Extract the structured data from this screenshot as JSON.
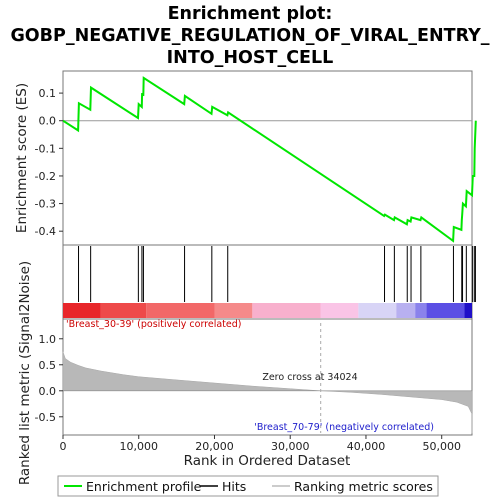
{
  "chart_data": {
    "type": "line",
    "title_lines": [
      "Enrichment plot:",
      "GOBP_NEGATIVE_REGULATION_OF_VIRAL_ENTRY_",
      "INTO_HOST_CELL"
    ],
    "xlabel": "Rank in Ordered Dataset",
    "ylabel_top": "Enrichment score (ES)",
    "ylabel_bottom": "Ranked list metric (Signal2Noise)",
    "xlim": [
      0,
      54000
    ],
    "x_ticks": [
      0,
      10000,
      20000,
      30000,
      40000,
      50000
    ],
    "x_tick_labels": [
      "0",
      "10,000",
      "20,000",
      "30,000",
      "40,000",
      "50,000"
    ],
    "es_ylim": [
      -0.45,
      0.18
    ],
    "es_ticks": [
      0.1,
      0.0,
      -0.1,
      -0.2,
      -0.3,
      -0.4
    ],
    "es_tick_labels": [
      "0.1",
      "0.0",
      "-0.1",
      "-0.2",
      "-0.3",
      "-0.4"
    ],
    "metric_ylim": [
      -0.85,
      1.38
    ],
    "metric_ticks": [
      1.0,
      0.5,
      0.0,
      -0.5
    ],
    "metric_tick_labels": [
      "1.0",
      "0.5",
      "0.0",
      "-0.5"
    ],
    "es_curve": [
      [
        0,
        0.0
      ],
      [
        2000,
        -0.035
      ],
      [
        2100,
        0.063
      ],
      [
        3600,
        0.04
      ],
      [
        3700,
        0.12
      ],
      [
        9900,
        0.01
      ],
      [
        10000,
        0.06
      ],
      [
        10400,
        0.05
      ],
      [
        10450,
        0.1
      ],
      [
        10600,
        0.09
      ],
      [
        10650,
        0.155
      ],
      [
        16000,
        0.06
      ],
      [
        16100,
        0.09
      ],
      [
        19600,
        0.025
      ],
      [
        19700,
        0.05
      ],
      [
        21700,
        0.02
      ],
      [
        21800,
        0.03
      ],
      [
        42400,
        -0.345
      ],
      [
        42500,
        -0.34
      ],
      [
        43700,
        -0.36
      ],
      [
        43800,
        -0.35
      ],
      [
        45400,
        -0.375
      ],
      [
        45500,
        -0.36
      ],
      [
        45900,
        -0.365
      ],
      [
        46000,
        -0.35
      ],
      [
        47200,
        -0.36
      ],
      [
        47300,
        -0.35
      ],
      [
        51500,
        -0.435
      ],
      [
        51600,
        -0.385
      ],
      [
        52600,
        -0.395
      ],
      [
        52650,
        -0.36
      ],
      [
        52700,
        -0.34
      ],
      [
        52800,
        -0.3
      ],
      [
        53200,
        -0.31
      ],
      [
        53300,
        -0.255
      ],
      [
        54000,
        -0.27
      ],
      [
        54100,
        -0.2
      ],
      [
        54300,
        -0.2
      ],
      [
        54350,
        -0.1
      ],
      [
        54500,
        0.0
      ]
    ],
    "hits": [
      2050,
      3650,
      9950,
      10420,
      10620,
      16050,
      19650,
      21750,
      42450,
      43750,
      45450,
      45950,
      47250,
      51550,
      52650,
      52750,
      53250,
      54050,
      54300,
      54450
    ],
    "metric_curve": [
      [
        0,
        0.75
      ],
      [
        300,
        0.62
      ],
      [
        1000,
        0.55
      ],
      [
        2000,
        0.49
      ],
      [
        3000,
        0.44
      ],
      [
        5000,
        0.38
      ],
      [
        8000,
        0.31
      ],
      [
        10000,
        0.27
      ],
      [
        15000,
        0.21
      ],
      [
        20000,
        0.15
      ],
      [
        25000,
        0.09
      ],
      [
        30000,
        0.04
      ],
      [
        34024,
        0.0
      ],
      [
        38000,
        -0.03
      ],
      [
        42000,
        -0.07
      ],
      [
        46000,
        -0.12
      ],
      [
        50000,
        -0.17
      ],
      [
        52000,
        -0.22
      ],
      [
        53500,
        -0.3
      ],
      [
        54000,
        -0.45
      ],
      [
        54500,
        -0.82
      ]
    ],
    "heatmap_colors": [
      "#e8262a",
      "#ee4a4a",
      "#f26868",
      "#f58a8a",
      "#f8b0cd",
      "#fac4e6",
      "#d8d4f6",
      "#b8b0f0",
      "#8a82ec",
      "#5b4fe4",
      "#2010c8"
    ],
    "heatmap_stops": [
      0,
      5000,
      11000,
      20000,
      25000,
      34000,
      39000,
      44000,
      46500,
      48000,
      53000,
      54500
    ],
    "zero_cross_x": 34024,
    "zero_cross_label": "Zero cross at 34024",
    "pos_label": "'Breast_30-39' (positively correlated)",
    "neg_label": "'Breast_70-79' (negatively correlated)",
    "legend": [
      "Enrichment profile",
      "Hits",
      "Ranking metric scores"
    ],
    "colors": {
      "es_line": "#00e600",
      "hit": "#000000",
      "metric_fill": "#b8b8b8",
      "pos_text": "#cc0000",
      "neg_text": "#2020cc"
    }
  }
}
